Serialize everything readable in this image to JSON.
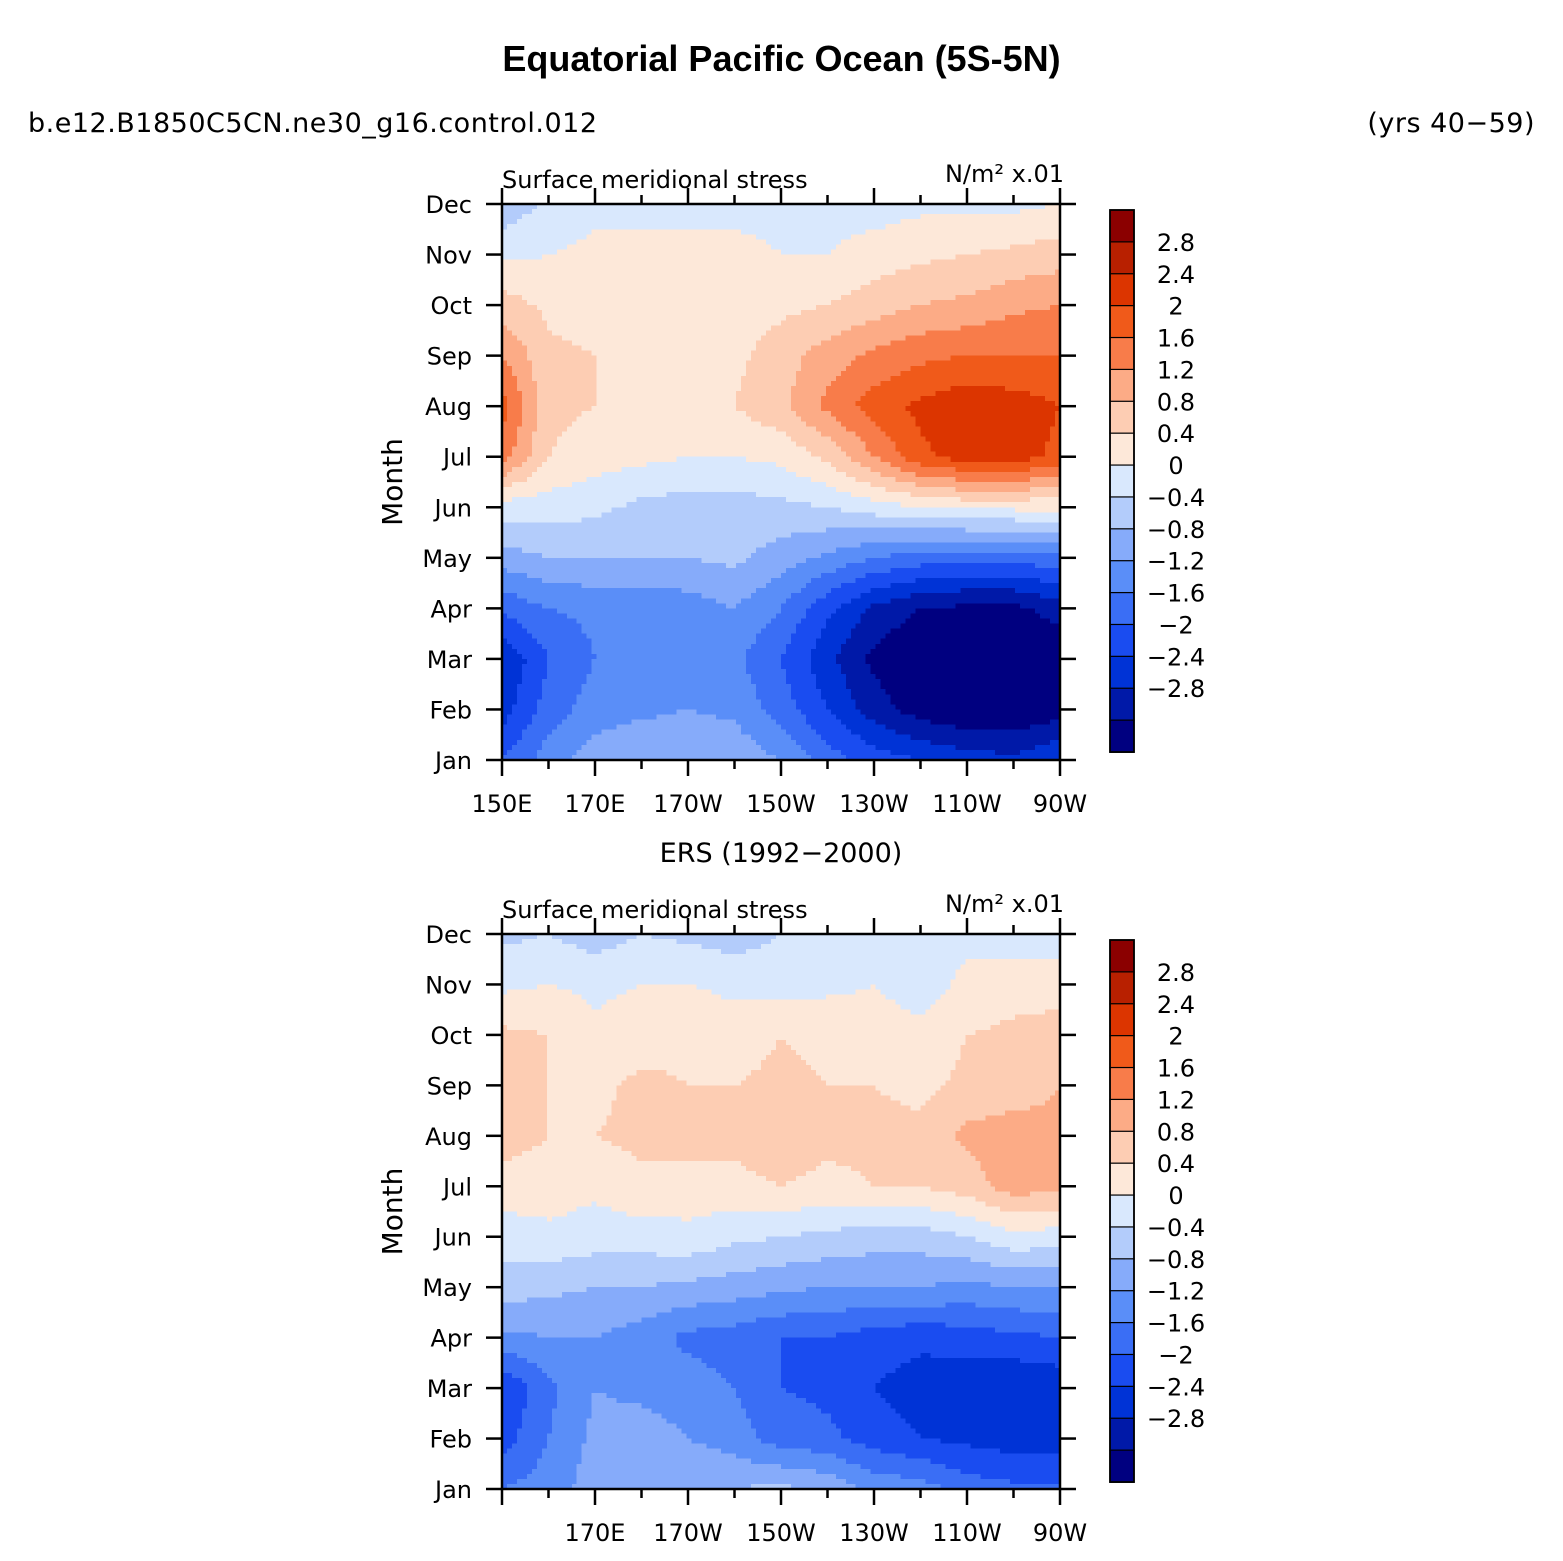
{
  "header": {
    "title": "Equatorial Pacific Ocean (5S-5N)",
    "case_name": "b.e12.B1850C5CN.ne30_g16.control.012",
    "years": "(yrs 40−59)"
  },
  "palette": [
    "#000080",
    "#0019a8",
    "#0033d6",
    "#1a4cf0",
    "#3a6ef5",
    "#5a8ef8",
    "#86abfa",
    "#b3ccfb",
    "#d9e8fd",
    "#fde8d9",
    "#fdcdb3",
    "#fcab86",
    "#f87c4a",
    "#f05a1a",
    "#dc3500",
    "#b82000",
    "#8b0000"
  ],
  "labelbar": {
    "labels": [
      "2.8",
      "2.4",
      "2",
      "1.6",
      "1.2",
      "0.8",
      "0.4",
      "0",
      "−0.4",
      "−0.8",
      "−1.2",
      "−1.6",
      "−2",
      "−2.4",
      "−2.8"
    ]
  },
  "chart_data": [
    {
      "type": "heatmap",
      "name": "model",
      "center_title": "",
      "left_string": "Surface meridional stress",
      "right_string": "N/m² x.01",
      "ylabel": "Month",
      "x_tick_labels": [
        "150E",
        "170E",
        "170W",
        "150W",
        "130W",
        "110W",
        "90W"
      ],
      "x_tick_values": [
        150,
        170,
        190,
        210,
        230,
        250,
        270
      ],
      "y_tick_labels": [
        "Jan",
        "Feb",
        "Mar",
        "Apr",
        "May",
        "Jun",
        "Jul",
        "Aug",
        "Sep",
        "Oct",
        "Nov",
        "Dec"
      ],
      "xlim": [
        150,
        270
      ],
      "ylim": [
        1,
        12
      ],
      "contour_levels": [
        -2.8,
        -2.4,
        -2,
        -1.6,
        -1.2,
        -0.8,
        -0.4,
        0,
        0.4,
        0.8,
        1.2,
        1.6,
        2,
        2.4,
        2.8
      ],
      "x": [
        150,
        160,
        170,
        180,
        190,
        200,
        210,
        220,
        230,
        240,
        250,
        260,
        270
      ],
      "y": [
        1,
        2,
        3,
        4,
        5,
        6,
        7,
        8,
        9,
        10,
        11,
        12
      ],
      "z": [
        [
          -1.6,
          -1.0,
          -0.6,
          -0.4,
          -0.4,
          -0.5,
          -0.8,
          -1.4,
          -1.8,
          -2.0,
          -2.2,
          -2.3,
          -2.0
        ],
        [
          -2.2,
          -1.4,
          -1.0,
          -0.9,
          -0.8,
          -0.9,
          -1.4,
          -2.0,
          -2.6,
          -3.0,
          -3.2,
          -3.2,
          -3.0
        ],
        [
          -2.4,
          -1.6,
          -1.2,
          -1.2,
          -1.2,
          -1.1,
          -1.6,
          -2.3,
          -2.9,
          -3.2,
          -3.3,
          -3.3,
          -3.2
        ],
        [
          -1.5,
          -1.2,
          -1.1,
          -1.1,
          -1.0,
          -0.8,
          -1.2,
          -1.9,
          -2.5,
          -2.8,
          -2.9,
          -2.9,
          -2.6
        ],
        [
          -0.6,
          -0.4,
          -0.4,
          -0.4,
          -0.4,
          -0.3,
          -0.6,
          -0.9,
          -1.2,
          -1.4,
          -1.5,
          -1.5,
          -1.3
        ],
        [
          0.2,
          0.2,
          0.1,
          -0.1,
          -0.2,
          -0.2,
          -0.1,
          0.0,
          0.2,
          0.4,
          0.5,
          0.5,
          0.5
        ],
        [
          1.8,
          0.8,
          0.6,
          0.5,
          0.4,
          0.4,
          0.5,
          0.9,
          1.6,
          2.3,
          2.6,
          2.6,
          2.3
        ],
        [
          2.2,
          0.9,
          0.8,
          0.8,
          0.7,
          0.8,
          1.1,
          1.7,
          2.2,
          2.5,
          2.7,
          2.6,
          2.4
        ],
        [
          1.6,
          0.9,
          0.8,
          0.7,
          0.6,
          0.7,
          1.0,
          1.4,
          1.7,
          1.9,
          2.0,
          2.0,
          2.0
        ],
        [
          1.0,
          0.7,
          0.6,
          0.6,
          0.6,
          0.6,
          0.7,
          0.8,
          1.0,
          1.2,
          1.3,
          1.5,
          1.6
        ],
        [
          0.3,
          0.4,
          0.5,
          0.5,
          0.5,
          0.5,
          0.4,
          0.4,
          0.6,
          0.7,
          0.8,
          0.9,
          1.0
        ],
        [
          -0.3,
          0.1,
          0.3,
          0.3,
          0.3,
          0.3,
          0.3,
          0.2,
          0.2,
          0.3,
          0.3,
          0.3,
          0.4
        ]
      ]
    },
    {
      "type": "heatmap",
      "name": "obs",
      "center_title": "ERS (1992−2000)",
      "left_string": "Surface meridional stress",
      "right_string": "N/m² x.01",
      "ylabel": "Month",
      "x_tick_labels": [
        "170E",
        "170W",
        "150W",
        "130W",
        "110W",
        "90W"
      ],
      "x_tick_values": [
        170,
        190,
        210,
        230,
        250,
        270
      ],
      "y_tick_labels": [
        "Jan",
        "Feb",
        "Mar",
        "Apr",
        "May",
        "Jun",
        "Jul",
        "Aug",
        "Sep",
        "Oct",
        "Nov",
        "Dec"
      ],
      "xlim": [
        150,
        270
      ],
      "ylim": [
        1,
        12
      ],
      "contour_levels": [
        -2.8,
        -2.4,
        -2,
        -1.6,
        -1.2,
        -0.8,
        -0.4,
        0,
        0.4,
        0.8,
        1.2,
        1.6,
        2,
        2.4,
        2.8
      ],
      "x": [
        150,
        160,
        170,
        180,
        190,
        200,
        210,
        220,
        230,
        240,
        250,
        260,
        270
      ],
      "y": [
        1,
        2,
        3,
        4,
        5,
        6,
        7,
        8,
        9,
        10,
        11,
        12
      ],
      "z": [
        [
          -1.2,
          -1.0,
          -0.6,
          -0.5,
          -0.4,
          -0.4,
          -0.3,
          -0.5,
          -0.9,
          -1.0,
          -1.4,
          -1.5,
          -1.5
        ],
        [
          -1.8,
          -1.2,
          -0.7,
          -0.6,
          -0.8,
          -1.0,
          -1.4,
          -1.5,
          -1.8,
          -2.0,
          -2.1,
          -2.2,
          -2.2
        ],
        [
          -2.0,
          -1.3,
          -0.8,
          -0.9,
          -1.0,
          -1.2,
          -1.6,
          -1.7,
          -2.0,
          -2.2,
          -2.3,
          -2.4,
          -2.3
        ],
        [
          -0.9,
          -0.8,
          -0.8,
          -1.0,
          -1.3,
          -1.4,
          -1.6,
          -1.6,
          -1.8,
          -1.9,
          -1.8,
          -1.7,
          -1.6
        ],
        [
          -0.2,
          -0.3,
          -0.4,
          -0.4,
          -0.5,
          -0.6,
          -0.7,
          -0.8,
          -0.8,
          -0.8,
          -0.9,
          -0.8,
          -0.8
        ],
        [
          0.2,
          0.3,
          0.2,
          0.2,
          0.3,
          0.1,
          0.0,
          -0.1,
          -0.2,
          -0.2,
          0.0,
          0.3,
          0.2
        ],
        [
          0.6,
          0.6,
          0.5,
          0.7,
          0.6,
          0.7,
          0.8,
          0.7,
          0.8,
          0.8,
          1.0,
          1.4,
          1.3
        ],
        [
          1.0,
          0.8,
          0.8,
          0.9,
          1.0,
          0.9,
          1.0,
          0.9,
          0.9,
          0.9,
          1.3,
          1.4,
          1.3
        ],
        [
          1.2,
          0.8,
          0.7,
          0.9,
          0.8,
          0.8,
          0.9,
          0.8,
          0.8,
          0.7,
          0.9,
          1.0,
          1.2
        ],
        [
          0.9,
          0.8,
          0.5,
          0.6,
          0.7,
          0.6,
          0.8,
          0.7,
          0.6,
          0.5,
          0.8,
          0.9,
          1.0
        ],
        [
          0.3,
          0.4,
          0.3,
          0.4,
          0.4,
          0.3,
          0.2,
          0.3,
          0.4,
          0.2,
          0.5,
          0.6,
          0.6
        ],
        [
          -0.1,
          0.0,
          -0.2,
          0.0,
          -0.1,
          -0.2,
          0.0,
          0.1,
          0.2,
          0.3,
          0.3,
          0.2,
          0.2
        ]
      ]
    }
  ]
}
